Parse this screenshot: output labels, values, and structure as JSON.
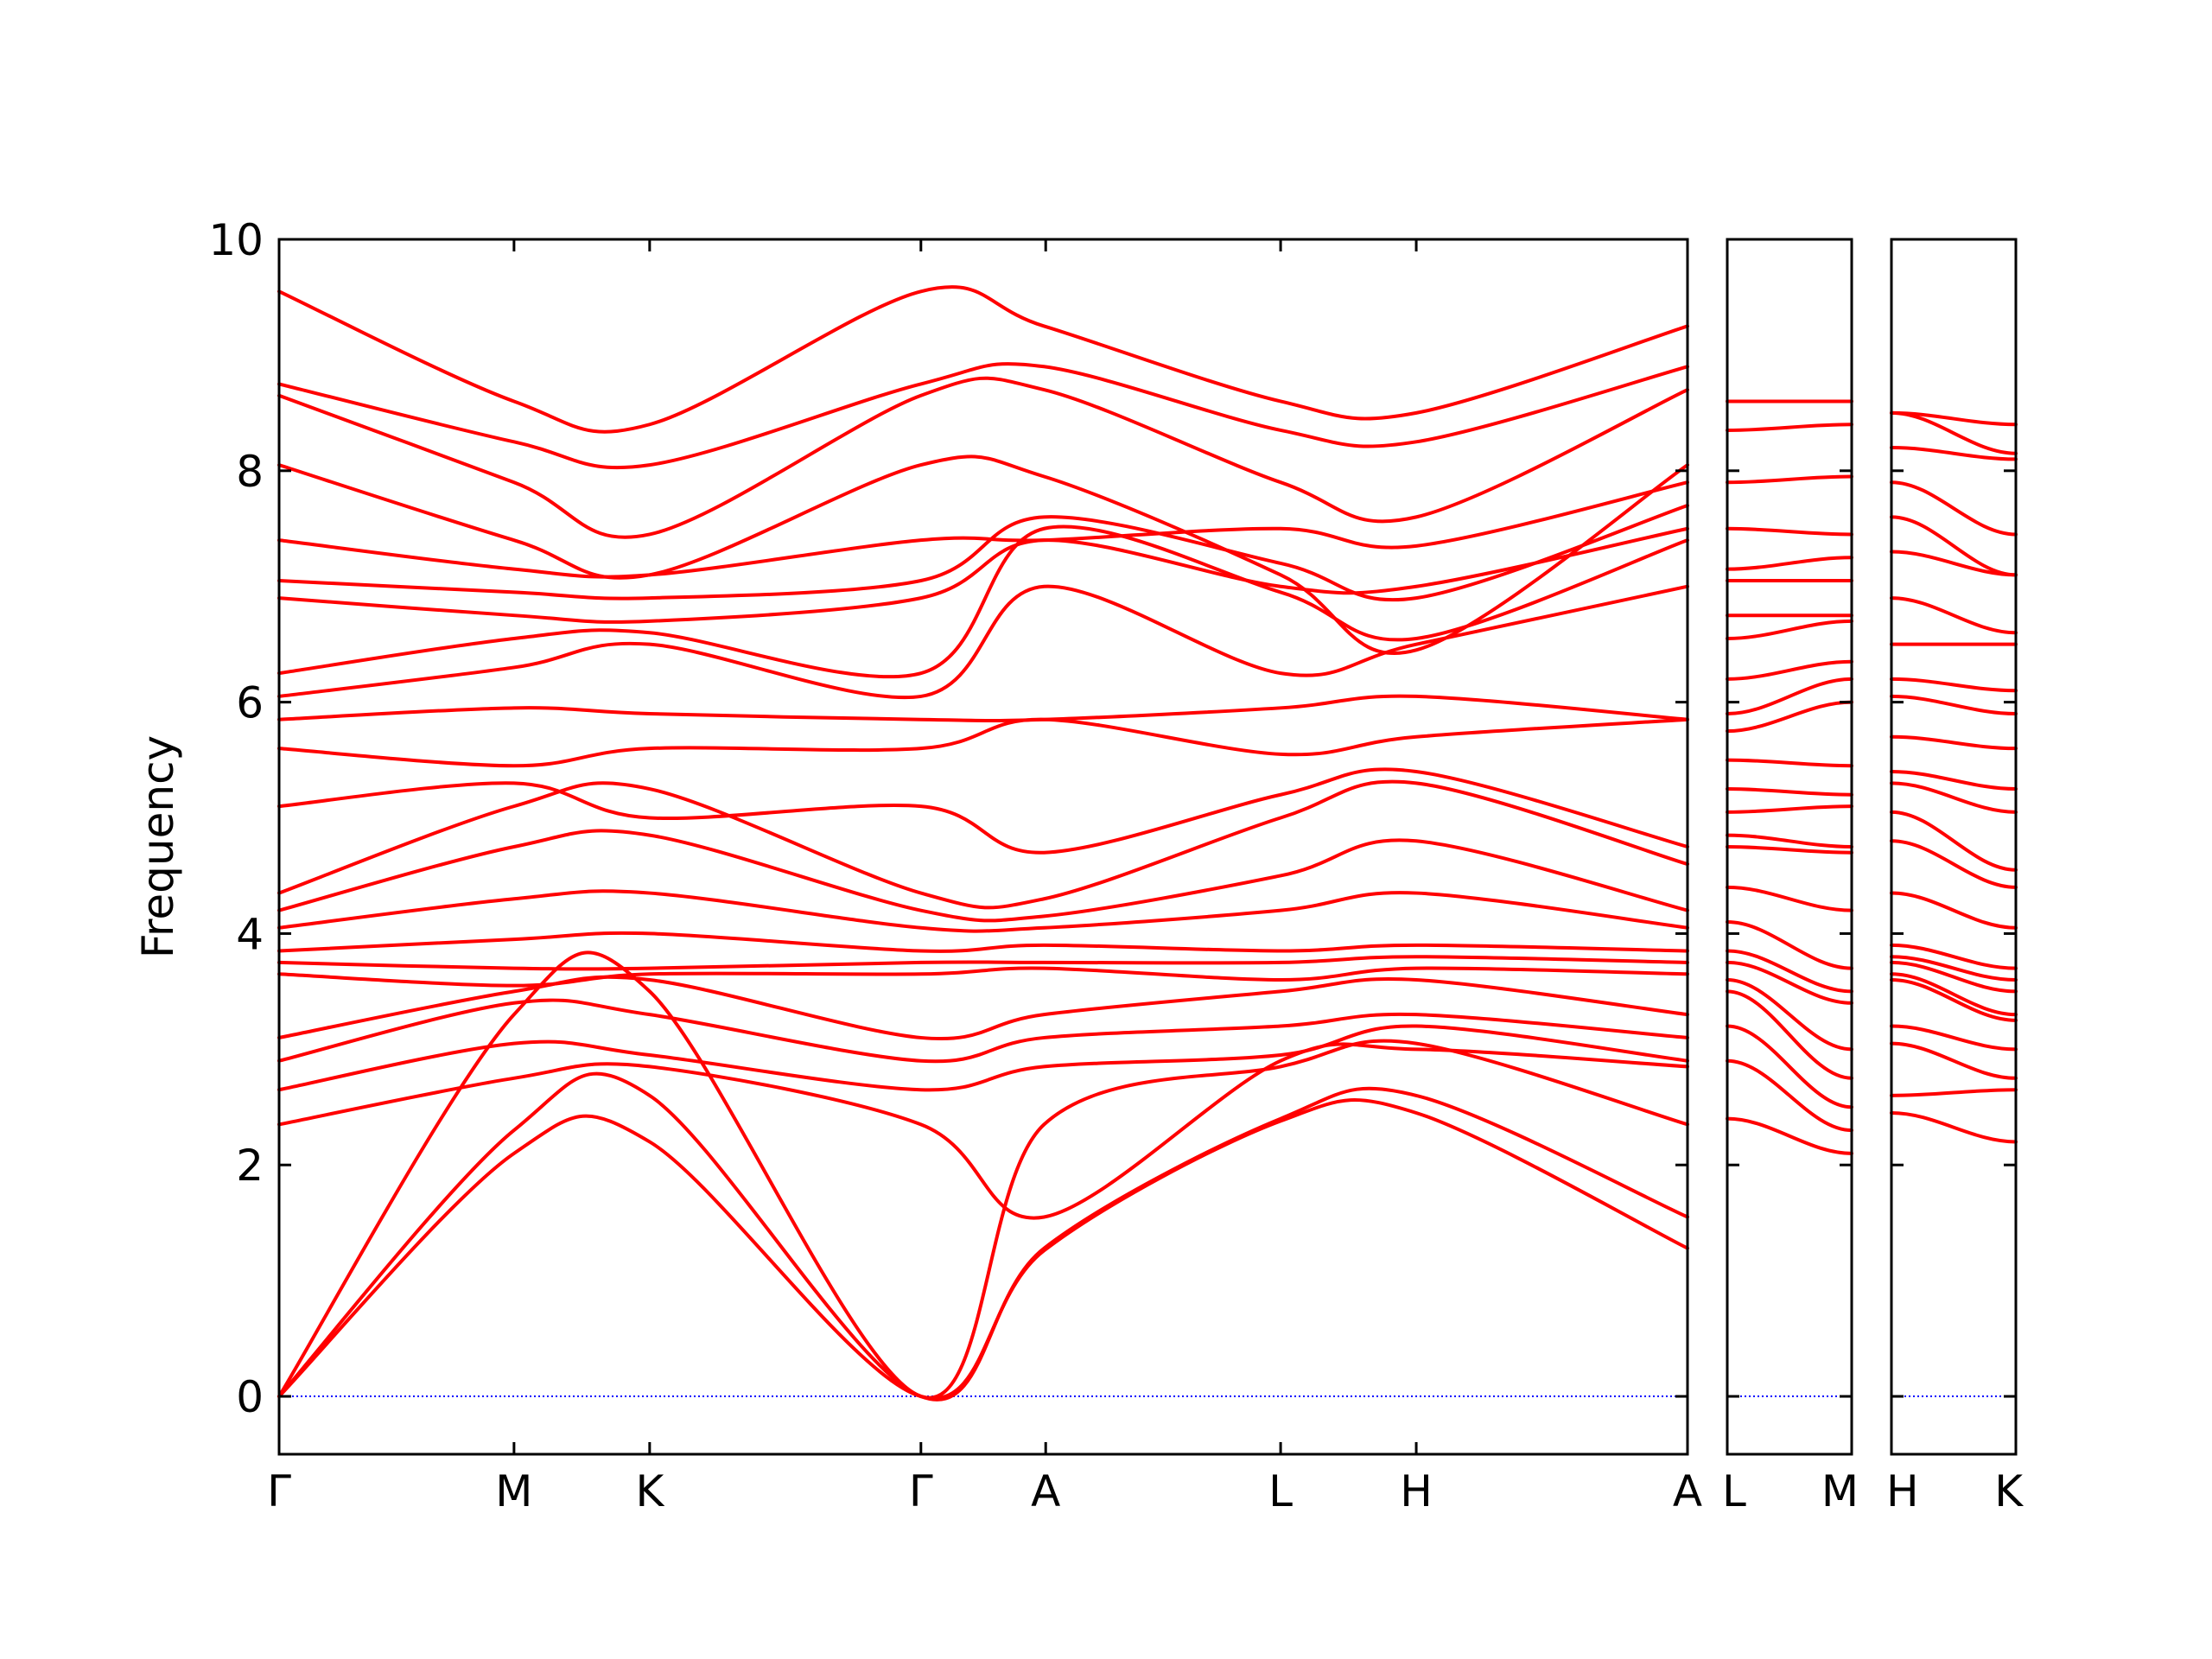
{
  "chart_data": {
    "type": "line",
    "ylabel": "Frequency",
    "ylim": [
      -0.5,
      10
    ],
    "yticks": [
      0,
      2,
      4,
      6,
      8,
      10
    ],
    "grid": false,
    "zero_line_color": "#0000ff",
    "band_color": "#ff0000",
    "panels": [
      {
        "id": "main",
        "points": [
          {
            "label": "Γ",
            "x": 0
          },
          {
            "label": "M",
            "x": 0.866
          },
          {
            "label": "K",
            "x": 1.366
          },
          {
            "label": "Γ",
            "x": 2.366
          },
          {
            "label": "A",
            "x": 2.826
          },
          {
            "label": "L",
            "x": 3.692
          },
          {
            "label": "H",
            "x": 4.192
          },
          {
            "label": "A",
            "x": 5.192
          }
        ]
      },
      {
        "id": "L-M",
        "points": [
          {
            "label": "L",
            "x": 0
          },
          {
            "label": "M",
            "x": 0.46
          }
        ]
      },
      {
        "id": "H-K",
        "points": [
          {
            "label": "H",
            "x": 0
          },
          {
            "label": "K",
            "x": 0.46
          }
        ]
      }
    ],
    "series": [
      {
        "name": "",
        "panel": "main",
        "nodes": [
          [
            0,
            0
          ],
          [
            0.866,
            2.1
          ],
          [
            1.366,
            2.2
          ],
          [
            2.366,
            0
          ]
        ],
        "spans": [
          [
            0,
            0
          ],
          [
            2.82,
            1.26
          ],
          [
            3.692,
            2.38
          ],
          [
            4.192,
            2.45
          ],
          [
            5.192,
            1.28
          ]
        ]
      },
      {
        "name": "",
        "panel": "main",
        "nodes": [
          [
            0,
            0
          ],
          [
            0.866,
            2.3
          ],
          [
            1.366,
            2.6
          ],
          [
            2.366,
            0
          ]
        ],
        "spans": [
          [
            0,
            0
          ],
          [
            2.82,
            1.28
          ],
          [
            3.692,
            2.4
          ],
          [
            4.192,
            2.6
          ],
          [
            5.192,
            1.55
          ]
        ]
      },
      {
        "name": "",
        "panel": "main",
        "nodes": [
          [
            0,
            0
          ],
          [
            0.866,
            3.3
          ],
          [
            1.366,
            3.5
          ],
          [
            2.366,
            0
          ]
        ],
        "spans": [
          [
            0,
            0
          ],
          [
            2.82,
            2.35
          ],
          [
            3.692,
            2.85
          ],
          [
            4.192,
            3.05
          ],
          [
            5.192,
            2.35
          ]
        ]
      },
      {
        "name": "",
        "panel": "main",
        "nodes": [
          [
            0,
            2.35
          ],
          [
            0.866,
            2.75
          ],
          [
            1.366,
            2.85
          ],
          [
            2.366,
            2.35
          ]
        ],
        "spans": [
          [
            2.366,
            2.35
          ],
          [
            2.82,
            1.55
          ],
          [
            3.692,
            2.9
          ],
          [
            4.192,
            3.0
          ],
          [
            5.192,
            2.85
          ]
        ]
      },
      {
        "name": "",
        "panel": "main",
        "nodes": [
          [
            0,
            2.65
          ],
          [
            0.866,
            3.05
          ],
          [
            1.366,
            2.95
          ],
          [
            2.366,
            2.65
          ]
        ],
        "spans": [
          [
            2.366,
            2.65
          ],
          [
            2.82,
            2.85
          ],
          [
            3.692,
            2.95
          ],
          [
            4.192,
            3.2
          ],
          [
            5.192,
            2.9
          ]
        ]
      },
      {
        "name": "",
        "panel": "main",
        "nodes": [
          [
            0,
            2.9
          ],
          [
            0.866,
            3.4
          ],
          [
            1.366,
            3.3
          ],
          [
            2.366,
            2.9
          ]
        ],
        "spans": [
          [
            2.366,
            2.9
          ],
          [
            2.82,
            3.1
          ],
          [
            3.692,
            3.2
          ],
          [
            4.192,
            3.3
          ],
          [
            5.192,
            3.1
          ]
        ]
      },
      {
        "name": "",
        "panel": "main",
        "nodes": [
          [
            0,
            3.1
          ],
          [
            0.866,
            3.5
          ],
          [
            1.366,
            3.6
          ],
          [
            2.366,
            3.1
          ]
        ],
        "spans": [
          [
            2.366,
            3.1
          ],
          [
            2.82,
            3.3
          ],
          [
            3.692,
            3.5
          ],
          [
            4.192,
            3.6
          ],
          [
            5.192,
            3.3
          ]
        ]
      },
      {
        "name": "",
        "panel": "main",
        "nodes": [
          [
            0,
            3.65
          ],
          [
            0.866,
            3.55
          ],
          [
            1.366,
            3.65
          ],
          [
            2.366,
            3.65
          ]
        ],
        "spans": [
          [
            2.366,
            3.65
          ],
          [
            2.82,
            3.7
          ],
          [
            3.692,
            3.6
          ],
          [
            4.192,
            3.7
          ],
          [
            5.192,
            3.65
          ]
        ]
      },
      {
        "name": "",
        "panel": "main",
        "nodes": [
          [
            0,
            3.75
          ],
          [
            0.866,
            3.7
          ],
          [
            1.366,
            3.7
          ],
          [
            2.366,
            3.75
          ]
        ],
        "spans": [
          [
            2.366,
            3.75
          ],
          [
            2.82,
            3.75
          ],
          [
            3.692,
            3.75
          ],
          [
            4.192,
            3.8
          ],
          [
            5.192,
            3.75
          ]
        ]
      },
      {
        "name": "",
        "panel": "main",
        "nodes": [
          [
            0,
            3.85
          ],
          [
            0.866,
            3.95
          ],
          [
            1.366,
            4.0
          ],
          [
            2.366,
            3.85
          ]
        ],
        "spans": [
          [
            2.366,
            3.85
          ],
          [
            2.82,
            3.9
          ],
          [
            3.692,
            3.85
          ],
          [
            4.192,
            3.9
          ],
          [
            5.192,
            3.85
          ]
        ]
      },
      {
        "name": "",
        "panel": "main",
        "nodes": [
          [
            0,
            4.05
          ],
          [
            0.866,
            4.3
          ],
          [
            1.366,
            4.35
          ],
          [
            2.366,
            4.05
          ]
        ],
        "spans": [
          [
            2.366,
            4.05
          ],
          [
            2.82,
            4.05
          ],
          [
            3.692,
            4.2
          ],
          [
            4.192,
            4.35
          ],
          [
            5.192,
            4.05
          ]
        ]
      },
      {
        "name": "",
        "panel": "main",
        "nodes": [
          [
            0,
            4.2
          ],
          [
            0.866,
            4.75
          ],
          [
            1.366,
            4.85
          ],
          [
            2.366,
            4.2
          ]
        ],
        "spans": [
          [
            2.366,
            4.2
          ],
          [
            2.82,
            4.15
          ],
          [
            3.692,
            4.5
          ],
          [
            4.192,
            4.8
          ],
          [
            5.192,
            4.2
          ]
        ]
      },
      {
        "name": "",
        "panel": "main",
        "nodes": [
          [
            0,
            4.35
          ],
          [
            0.866,
            5.1
          ],
          [
            1.366,
            5.25
          ],
          [
            2.366,
            4.35
          ]
        ],
        "spans": [
          [
            2.366,
            4.35
          ],
          [
            2.82,
            4.3
          ],
          [
            3.692,
            5.0
          ],
          [
            4.192,
            5.3
          ],
          [
            5.192,
            4.6
          ]
        ]
      },
      {
        "name": "",
        "panel": "main",
        "nodes": [
          [
            0,
            5.1
          ],
          [
            0.866,
            5.3
          ],
          [
            1.366,
            5.0
          ],
          [
            2.366,
            5.1
          ]
        ],
        "spans": [
          [
            2.366,
            5.1
          ],
          [
            2.82,
            4.7
          ],
          [
            3.692,
            5.2
          ],
          [
            4.192,
            5.4
          ],
          [
            5.192,
            4.75
          ]
        ]
      },
      {
        "name": "",
        "panel": "main",
        "nodes": [
          [
            0,
            5.6
          ],
          [
            0.866,
            5.45
          ],
          [
            1.366,
            5.6
          ],
          [
            2.366,
            5.6
          ]
        ],
        "spans": [
          [
            2.366,
            5.6
          ],
          [
            2.82,
            5.85
          ],
          [
            3.692,
            5.55
          ],
          [
            4.192,
            5.7
          ],
          [
            5.192,
            5.85
          ]
        ]
      },
      {
        "name": "",
        "panel": "main",
        "nodes": [
          [
            0,
            5.85
          ],
          [
            0.866,
            5.95
          ],
          [
            1.366,
            5.9
          ],
          [
            2.366,
            5.85
          ]
        ],
        "spans": [
          [
            2.366,
            5.85
          ],
          [
            2.82,
            5.85
          ],
          [
            3.692,
            5.95
          ],
          [
            4.192,
            6.05
          ],
          [
            5.192,
            5.85
          ]
        ]
      },
      {
        "name": "",
        "panel": "main",
        "nodes": [
          [
            0,
            6.05
          ],
          [
            0.866,
            6.3
          ],
          [
            1.366,
            6.5
          ],
          [
            2.366,
            6.05
          ]
        ],
        "spans": [
          [
            2.366,
            6.05
          ],
          [
            2.82,
            7.0
          ],
          [
            3.692,
            6.25
          ],
          [
            4.192,
            6.5
          ],
          [
            5.192,
            7.0
          ]
        ]
      },
      {
        "name": "",
        "panel": "main",
        "nodes": [
          [
            0,
            6.25
          ],
          [
            0.866,
            6.55
          ],
          [
            1.366,
            6.6
          ],
          [
            2.366,
            6.25
          ]
        ],
        "spans": [
          [
            2.366,
            6.25
          ],
          [
            2.82,
            7.5
          ],
          [
            3.692,
            6.95
          ],
          [
            4.192,
            6.55
          ],
          [
            5.192,
            7.4
          ]
        ]
      },
      {
        "name": "",
        "panel": "main",
        "nodes": [
          [
            0,
            6.9
          ],
          [
            0.866,
            6.75
          ],
          [
            1.366,
            6.7
          ],
          [
            2.366,
            6.9
          ]
        ],
        "spans": [
          [
            2.366,
            6.9
          ],
          [
            2.82,
            7.4
          ],
          [
            3.692,
            7.0
          ],
          [
            4.192,
            7.0
          ],
          [
            5.192,
            7.5
          ]
        ]
      },
      {
        "name": "",
        "panel": "main",
        "nodes": [
          [
            0,
            7.05
          ],
          [
            0.866,
            6.95
          ],
          [
            1.366,
            6.9
          ],
          [
            2.366,
            7.05
          ]
        ],
        "spans": [
          [
            2.366,
            7.05
          ],
          [
            2.82,
            7.6
          ],
          [
            3.692,
            7.2
          ],
          [
            4.192,
            6.9
          ],
          [
            5.192,
            7.7
          ]
        ]
      },
      {
        "name": "",
        "panel": "main",
        "nodes": [
          [
            0,
            7.4
          ],
          [
            0.866,
            7.15
          ],
          [
            1.366,
            7.1
          ],
          [
            2.366,
            7.4
          ]
        ],
        "spans": [
          [
            2.366,
            7.4
          ],
          [
            2.82,
            7.4
          ],
          [
            3.692,
            7.5
          ],
          [
            4.192,
            7.35
          ],
          [
            5.192,
            7.9
          ]
        ]
      },
      {
        "name": "",
        "panel": "main",
        "nodes": [
          [
            0,
            8.05
          ],
          [
            0.866,
            7.4
          ],
          [
            1.366,
            7.1
          ],
          [
            2.366,
            8.05
          ]
        ],
        "spans": [
          [
            2.366,
            8.05
          ],
          [
            2.82,
            7.95
          ],
          [
            3.692,
            7.1
          ],
          [
            4.192,
            6.45
          ],
          [
            5.192,
            8.05
          ]
        ]
      },
      {
        "name": "",
        "panel": "main",
        "nodes": [
          [
            0,
            8.65
          ],
          [
            0.866,
            7.9
          ],
          [
            1.366,
            7.45
          ],
          [
            2.366,
            8.65
          ]
        ],
        "spans": [
          [
            2.366,
            8.65
          ],
          [
            2.82,
            8.7
          ],
          [
            3.692,
            7.9
          ],
          [
            4.192,
            7.6
          ],
          [
            5.192,
            8.7
          ]
        ]
      },
      {
        "name": "",
        "panel": "main",
        "nodes": [
          [
            0,
            8.75
          ],
          [
            0.866,
            8.25
          ],
          [
            1.366,
            8.05
          ],
          [
            2.366,
            8.75
          ]
        ],
        "spans": [
          [
            2.366,
            8.75
          ],
          [
            2.82,
            8.9
          ],
          [
            3.692,
            8.35
          ],
          [
            4.192,
            8.25
          ],
          [
            5.192,
            8.9
          ]
        ]
      },
      {
        "name": "",
        "panel": "main",
        "nodes": [
          [
            0,
            9.55
          ],
          [
            0.866,
            8.6
          ],
          [
            1.366,
            8.4
          ],
          [
            2.366,
            9.55
          ]
        ],
        "spans": [
          [
            2.366,
            9.55
          ],
          [
            2.82,
            9.25
          ],
          [
            3.692,
            8.6
          ],
          [
            4.192,
            8.5
          ],
          [
            5.192,
            9.25
          ]
        ]
      },
      {
        "name": "",
        "panel": "L-M",
        "values_start": [
          2.4,
          2.9,
          3.2,
          3.5,
          3.6,
          3.75,
          3.85,
          4.1,
          4.4,
          4.75,
          4.85,
          5.05,
          5.25,
          5.5,
          5.75,
          5.9,
          6.2,
          6.55,
          6.75,
          7.05,
          7.15,
          7.5,
          7.9,
          8.35,
          8.6
        ],
        "values_end": [
          2.1,
          2.3,
          2.5,
          2.75,
          3.0,
          3.4,
          3.5,
          3.7,
          4.2,
          4.7,
          4.75,
          5.1,
          5.2,
          5.45,
          6.0,
          6.2,
          6.35,
          6.7,
          6.75,
          7.05,
          7.25,
          7.45,
          7.95,
          8.4,
          8.6
        ]
      },
      {
        "name": "",
        "panel": "H-K",
        "values_start": [
          2.45,
          2.6,
          3.05,
          3.2,
          3.6,
          3.65,
          3.75,
          3.8,
          3.9,
          4.35,
          4.8,
          5.05,
          5.3,
          5.4,
          5.7,
          6.05,
          6.2,
          6.5,
          6.9,
          7.3,
          7.6,
          7.9,
          8.2,
          8.5,
          8.5
        ],
        "values_end": [
          2.2,
          2.65,
          2.75,
          3.0,
          3.25,
          3.3,
          3.5,
          3.6,
          3.7,
          4.05,
          4.4,
          4.55,
          5.05,
          5.25,
          5.6,
          5.9,
          6.1,
          6.5,
          6.6,
          7.1,
          7.1,
          7.45,
          8.1,
          8.15,
          8.4
        ]
      }
    ]
  }
}
